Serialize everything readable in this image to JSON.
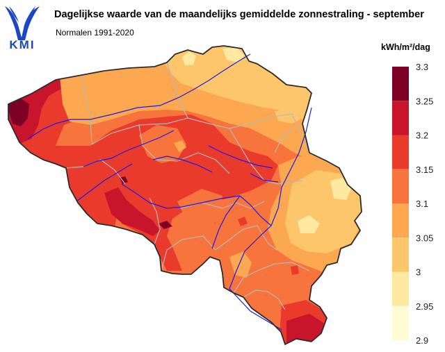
{
  "logo": {
    "text": "KMI"
  },
  "title": "Dagelijkse waarde van de maandelijks gemiddelde zonnestraling - september",
  "subtitle": "Normalen 1991-2020",
  "legend": {
    "unit": "kWh/m²/dag",
    "ticks": [
      "3.3",
      "3.25",
      "3.2",
      "3.15",
      "3.1",
      "3.05",
      "3",
      "2.95",
      "2.9"
    ],
    "classes": [
      {
        "from": 2.9,
        "to": 2.95,
        "color": "#fffcd4"
      },
      {
        "from": 2.95,
        "to": 3.0,
        "color": "#ffe8a0"
      },
      {
        "from": 3.0,
        "to": 3.05,
        "color": "#fdc66b"
      },
      {
        "from": 3.05,
        "to": 3.1,
        "color": "#fba850"
      },
      {
        "from": 3.1,
        "to": 3.15,
        "color": "#f7743d"
      },
      {
        "from": 3.15,
        "to": 3.2,
        "color": "#ea3a2c"
      },
      {
        "from": 3.2,
        "to": 3.25,
        "color": "#c8152b"
      },
      {
        "from": 3.25,
        "to": 3.3,
        "color": "#7d0026"
      }
    ]
  },
  "colors": {
    "border": "#2b2b2b",
    "provinces": "#b8b8b8",
    "rivers": "#1a1ae6"
  }
}
